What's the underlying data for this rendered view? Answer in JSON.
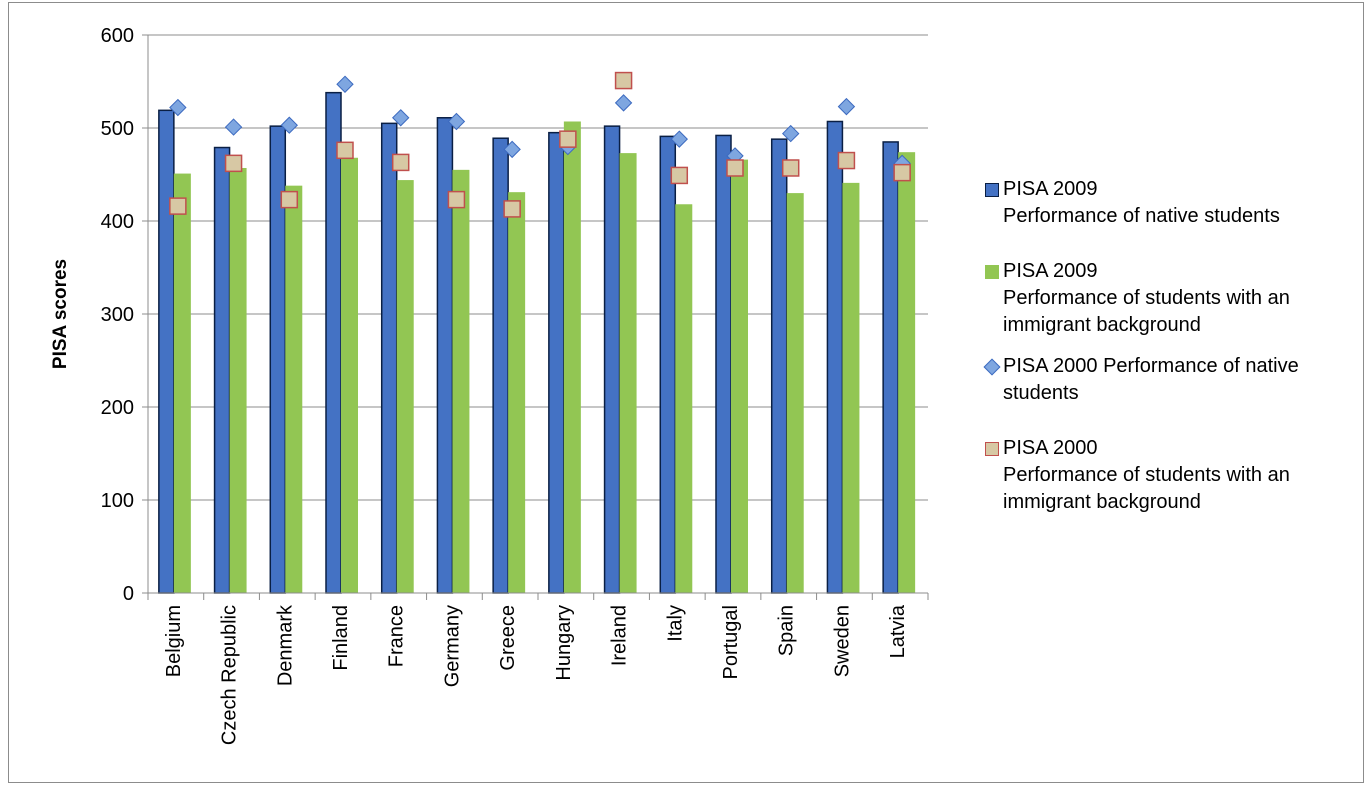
{
  "chart_data": {
    "type": "bar",
    "ylabel": "PISA scores",
    "xlabel": "",
    "ylim": [
      0,
      600
    ],
    "yticks": [
      0,
      100,
      200,
      300,
      400,
      500,
      600
    ],
    "grid": true,
    "legend_position": "right",
    "categories": [
      "Belgium",
      "Czech Republic",
      "Denmark",
      "Finland",
      "France",
      "Germany",
      "Greece",
      "Hungary",
      "Ireland",
      "Italy",
      "Portugal",
      "Spain",
      "Sweden",
      "Latvia"
    ],
    "series": [
      {
        "name": "PISA 2009\nPerformance of native students",
        "kind": "bar",
        "color": "#4472c4",
        "values": [
          519,
          479,
          502,
          538,
          505,
          511,
          489,
          495,
          502,
          491,
          492,
          488,
          507,
          485
        ]
      },
      {
        "name": "PISA 2009\nPerformance of students with an immigrant background",
        "kind": "bar",
        "color": "#92c653",
        "values": [
          451,
          457,
          438,
          468,
          444,
          455,
          431,
          507,
          473,
          418,
          466,
          430,
          441,
          474
        ]
      },
      {
        "name": "PISA 2000 Performance of native students",
        "kind": "marker",
        "marker": "diamond",
        "color": "#7ea6e0",
        "values": [
          522,
          501,
          503,
          547,
          511,
          507,
          477,
          480,
          527,
          488,
          470,
          494,
          523,
          462
        ]
      },
      {
        "name": "PISA 2000\nPerformance of students with an immigrant background",
        "kind": "marker",
        "marker": "square",
        "color": "#d7c8a4",
        "values": [
          416,
          462,
          423,
          476,
          463,
          423,
          413,
          488,
          551,
          449,
          457,
          457,
          465,
          452
        ]
      }
    ]
  },
  "legend": [
    {
      "line1": "PISA 2009",
      "line2": "Performance of native students",
      "swatch": "bar-blue"
    },
    {
      "line1": "PISA 2009",
      "line2": "Performance of students with an\nimmigrant background",
      "swatch": "bar-green"
    },
    {
      "line1": "PISA 2000 Performance of native",
      "line2": "students",
      "swatch": "diamond"
    },
    {
      "line1": "PISA 2000",
      "line2": "Performance of students with an\nimmigrant background",
      "swatch": "square"
    }
  ]
}
